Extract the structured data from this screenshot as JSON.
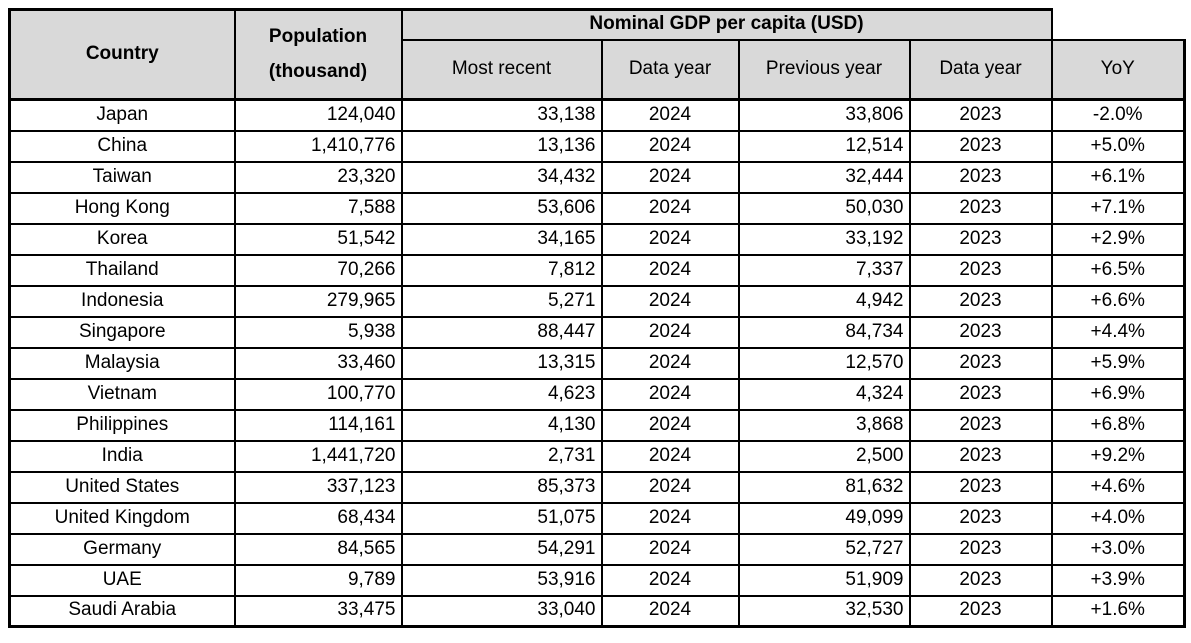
{
  "table": {
    "colors": {
      "header_bg": "#d9d9d9",
      "border": "#000000",
      "background": "#ffffff"
    },
    "header": {
      "country": "Country",
      "population_line1": "Population",
      "population_line2": "(thousand)",
      "gdp_group": "Nominal GDP per capita (USD)",
      "sub": [
        "Most recent",
        "Data year",
        "Previous year",
        "Data year",
        "YoY"
      ]
    },
    "rows": [
      {
        "country": "Japan",
        "population": "124,040",
        "most_recent": "33,138",
        "data_year_1": "2024",
        "previous_year": "33,806",
        "data_year_2": "2023",
        "yoy": "-2.0%"
      },
      {
        "country": "China",
        "population": "1,410,776",
        "most_recent": "13,136",
        "data_year_1": "2024",
        "previous_year": "12,514",
        "data_year_2": "2023",
        "yoy": "+5.0%"
      },
      {
        "country": "Taiwan",
        "population": "23,320",
        "most_recent": "34,432",
        "data_year_1": "2024",
        "previous_year": "32,444",
        "data_year_2": "2023",
        "yoy": "+6.1%"
      },
      {
        "country": "Hong Kong",
        "population": "7,588",
        "most_recent": "53,606",
        "data_year_1": "2024",
        "previous_year": "50,030",
        "data_year_2": "2023",
        "yoy": "+7.1%"
      },
      {
        "country": "Korea",
        "population": "51,542",
        "most_recent": "34,165",
        "data_year_1": "2024",
        "previous_year": "33,192",
        "data_year_2": "2023",
        "yoy": "+2.9%"
      },
      {
        "country": "Thailand",
        "population": "70,266",
        "most_recent": "7,812",
        "data_year_1": "2024",
        "previous_year": "7,337",
        "data_year_2": "2023",
        "yoy": "+6.5%"
      },
      {
        "country": "Indonesia",
        "population": "279,965",
        "most_recent": "5,271",
        "data_year_1": "2024",
        "previous_year": "4,942",
        "data_year_2": "2023",
        "yoy": "+6.6%"
      },
      {
        "country": "Singapore",
        "population": "5,938",
        "most_recent": "88,447",
        "data_year_1": "2024",
        "previous_year": "84,734",
        "data_year_2": "2023",
        "yoy": "+4.4%"
      },
      {
        "country": "Malaysia",
        "population": "33,460",
        "most_recent": "13,315",
        "data_year_1": "2024",
        "previous_year": "12,570",
        "data_year_2": "2023",
        "yoy": "+5.9%"
      },
      {
        "country": "Vietnam",
        "population": "100,770",
        "most_recent": "4,623",
        "data_year_1": "2024",
        "previous_year": "4,324",
        "data_year_2": "2023",
        "yoy": "+6.9%"
      },
      {
        "country": "Philippines",
        "population": "114,161",
        "most_recent": "4,130",
        "data_year_1": "2024",
        "previous_year": "3,868",
        "data_year_2": "2023",
        "yoy": "+6.8%"
      },
      {
        "country": "India",
        "population": "1,441,720",
        "most_recent": "2,731",
        "data_year_1": "2024",
        "previous_year": "2,500",
        "data_year_2": "2023",
        "yoy": "+9.2%"
      },
      {
        "country": "United States",
        "population": "337,123",
        "most_recent": "85,373",
        "data_year_1": "2024",
        "previous_year": "81,632",
        "data_year_2": "2023",
        "yoy": "+4.6%"
      },
      {
        "country": "United Kingdom",
        "population": "68,434",
        "most_recent": "51,075",
        "data_year_1": "2024",
        "previous_year": "49,099",
        "data_year_2": "2023",
        "yoy": "+4.0%"
      },
      {
        "country": "Germany",
        "population": "84,565",
        "most_recent": "54,291",
        "data_year_1": "2024",
        "previous_year": "52,727",
        "data_year_2": "2023",
        "yoy": "+3.0%"
      },
      {
        "country": "UAE",
        "population": "9,789",
        "most_recent": "53,916",
        "data_year_1": "2024",
        "previous_year": "51,909",
        "data_year_2": "2023",
        "yoy": "+3.9%"
      },
      {
        "country": "Saudi Arabia",
        "population": "33,475",
        "most_recent": "33,040",
        "data_year_1": "2024",
        "previous_year": "32,530",
        "data_year_2": "2023",
        "yoy": "+1.6%"
      }
    ]
  },
  "chart_data": {
    "type": "table",
    "title": "Nominal GDP per capita (USD)",
    "columns": [
      "Country",
      "Population (thousand)",
      "Most recent",
      "Data year",
      "Previous year",
      "Data year",
      "YoY"
    ],
    "rows": [
      [
        "Japan",
        124040,
        33138,
        2024,
        33806,
        2023,
        "-2.0%"
      ],
      [
        "China",
        1410776,
        13136,
        2024,
        12514,
        2023,
        "+5.0%"
      ],
      [
        "Taiwan",
        23320,
        34432,
        2024,
        32444,
        2023,
        "+6.1%"
      ],
      [
        "Hong Kong",
        7588,
        53606,
        2024,
        50030,
        2023,
        "+7.1%"
      ],
      [
        "Korea",
        51542,
        34165,
        2024,
        33192,
        2023,
        "+2.9%"
      ],
      [
        "Thailand",
        70266,
        7812,
        2024,
        7337,
        2023,
        "+6.5%"
      ],
      [
        "Indonesia",
        279965,
        5271,
        2024,
        4942,
        2023,
        "+6.6%"
      ],
      [
        "Singapore",
        5938,
        88447,
        2024,
        84734,
        2023,
        "+4.4%"
      ],
      [
        "Malaysia",
        33460,
        13315,
        2024,
        12570,
        2023,
        "+5.9%"
      ],
      [
        "Vietnam",
        100770,
        4623,
        2024,
        4324,
        2023,
        "+6.9%"
      ],
      [
        "Philippines",
        114161,
        4130,
        2024,
        3868,
        2023,
        "+6.8%"
      ],
      [
        "India",
        1441720,
        2731,
        2024,
        2500,
        2023,
        "+9.2%"
      ],
      [
        "United States",
        337123,
        85373,
        2024,
        81632,
        2023,
        "+4.6%"
      ],
      [
        "United Kingdom",
        68434,
        51075,
        2024,
        49099,
        2023,
        "+4.0%"
      ],
      [
        "Germany",
        84565,
        54291,
        2024,
        52727,
        2023,
        "+3.0%"
      ],
      [
        "UAE",
        9789,
        53916,
        2024,
        51909,
        2023,
        "+3.9%"
      ],
      [
        "Saudi Arabia",
        33475,
        33040,
        2024,
        32530,
        2023,
        "+1.6%"
      ]
    ]
  }
}
